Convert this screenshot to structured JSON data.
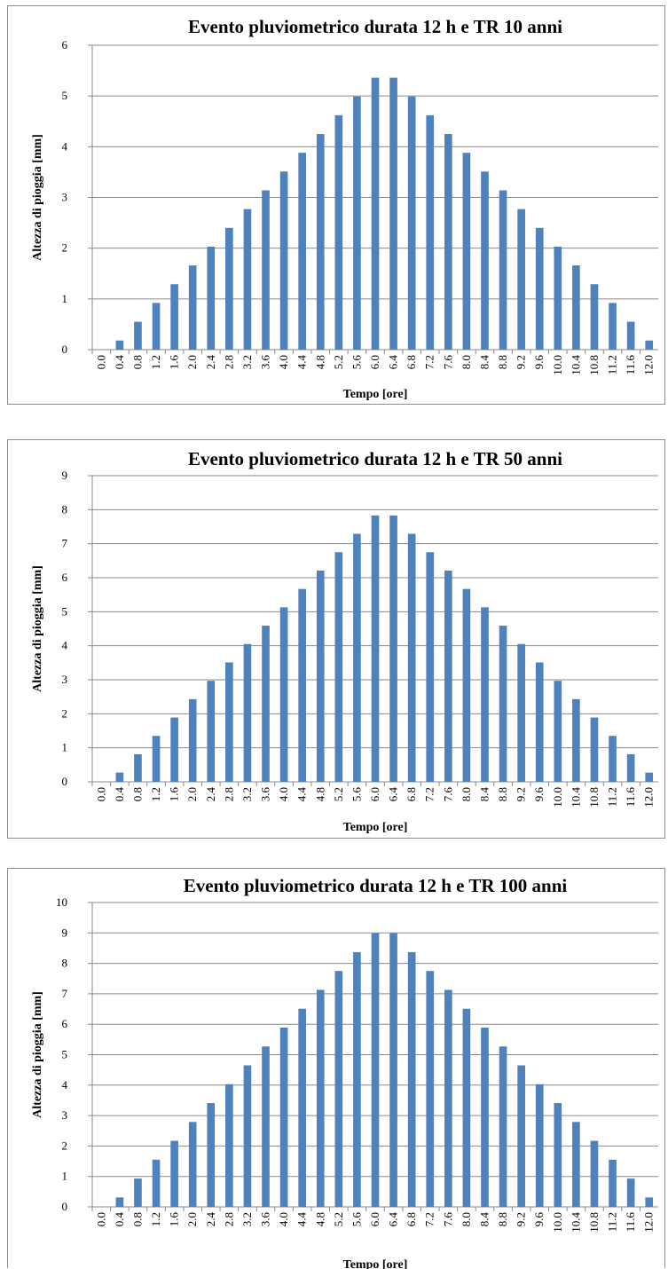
{
  "chart_data": [
    {
      "type": "bar",
      "title": "Evento pluviometrico durata 12 h e TR 10 anni",
      "xlabel": "Tempo [ore]",
      "ylabel": "Altezza di pioggia [mm]",
      "ylim": [
        0,
        6
      ],
      "yticks": [
        0,
        1,
        2,
        3,
        4,
        5,
        6
      ],
      "grid": true,
      "bar_color": "#4f81bd",
      "categories": [
        "0.0",
        "0.4",
        "0.8",
        "1.2",
        "1.6",
        "2.0",
        "2.4",
        "2.8",
        "3.2",
        "3.6",
        "4.0",
        "4.4",
        "4.8",
        "5.2",
        "5.6",
        "6.0",
        "6.4",
        "6.8",
        "7.2",
        "7.6",
        "8.0",
        "8.4",
        "8.8",
        "9.2",
        "9.6",
        "10.0",
        "10.4",
        "10.8",
        "11.2",
        "11.6",
        "12.0"
      ],
      "values": [
        0,
        0.18,
        0.55,
        0.92,
        1.29,
        1.66,
        2.03,
        2.4,
        2.77,
        3.14,
        3.51,
        3.88,
        4.25,
        4.62,
        4.99,
        5.36,
        5.36,
        4.99,
        4.62,
        4.25,
        3.88,
        3.51,
        3.14,
        2.77,
        2.4,
        2.03,
        1.66,
        1.29,
        0.92,
        0.55,
        0.18
      ]
    },
    {
      "type": "bar",
      "title": "Evento pluviometrico durata 12 h e TR 50 anni",
      "xlabel": "Tempo [ore]",
      "ylabel": "Altezza di pioggia [mm]",
      "ylim": [
        0,
        9
      ],
      "yticks": [
        0,
        1,
        2,
        3,
        4,
        5,
        6,
        7,
        8,
        9
      ],
      "grid": true,
      "bar_color": "#4f81bd",
      "categories": [
        "0.0",
        "0.4",
        "0.8",
        "1.2",
        "1.6",
        "2.0",
        "2.4",
        "2.8",
        "3.2",
        "3.6",
        "4.0",
        "4.4",
        "4.8",
        "5.2",
        "5.6",
        "6.0",
        "6.4",
        "6.8",
        "7.2",
        "7.6",
        "8.0",
        "8.4",
        "8.8",
        "9.2",
        "9.6",
        "10.0",
        "10.4",
        "10.8",
        "11.2",
        "11.6",
        "12.0"
      ],
      "values": [
        0,
        0.27,
        0.81,
        1.35,
        1.89,
        2.43,
        2.97,
        3.51,
        4.05,
        4.59,
        5.13,
        5.67,
        6.21,
        6.75,
        7.29,
        7.83,
        7.83,
        7.29,
        6.75,
        6.21,
        5.67,
        5.13,
        4.59,
        4.05,
        3.51,
        2.97,
        2.43,
        1.89,
        1.35,
        0.81,
        0.27
      ]
    },
    {
      "type": "bar",
      "title": "Evento pluviometrico durata 12 h e TR 100 anni",
      "xlabel": "Tempo [ore]",
      "ylabel": "Altezza di pioggia [mm]",
      "ylim": [
        0,
        10
      ],
      "yticks": [
        0,
        1,
        2,
        3,
        4,
        5,
        6,
        7,
        8,
        9,
        10
      ],
      "grid": true,
      "bar_color": "#4f81bd",
      "categories": [
        "0.0",
        "0.4",
        "0.8",
        "1.2",
        "1.6",
        "2.0",
        "2.4",
        "2.8",
        "3.2",
        "3.6",
        "4.0",
        "4.4",
        "4.8",
        "5.2",
        "5.6",
        "6.0",
        "6.4",
        "6.8",
        "7.2",
        "7.6",
        "8.0",
        "8.4",
        "8.8",
        "9.2",
        "9.6",
        "10.0",
        "10.4",
        "10.8",
        "11.2",
        "11.6",
        "12.0"
      ],
      "values": [
        0,
        0.31,
        0.93,
        1.55,
        2.17,
        2.79,
        3.41,
        4.03,
        4.65,
        5.27,
        5.89,
        6.51,
        7.13,
        7.75,
        8.37,
        8.99,
        8.99,
        8.37,
        7.75,
        7.13,
        6.51,
        5.89,
        5.27,
        4.65,
        4.03,
        3.41,
        2.79,
        2.17,
        1.55,
        0.93,
        0.31
      ]
    }
  ]
}
